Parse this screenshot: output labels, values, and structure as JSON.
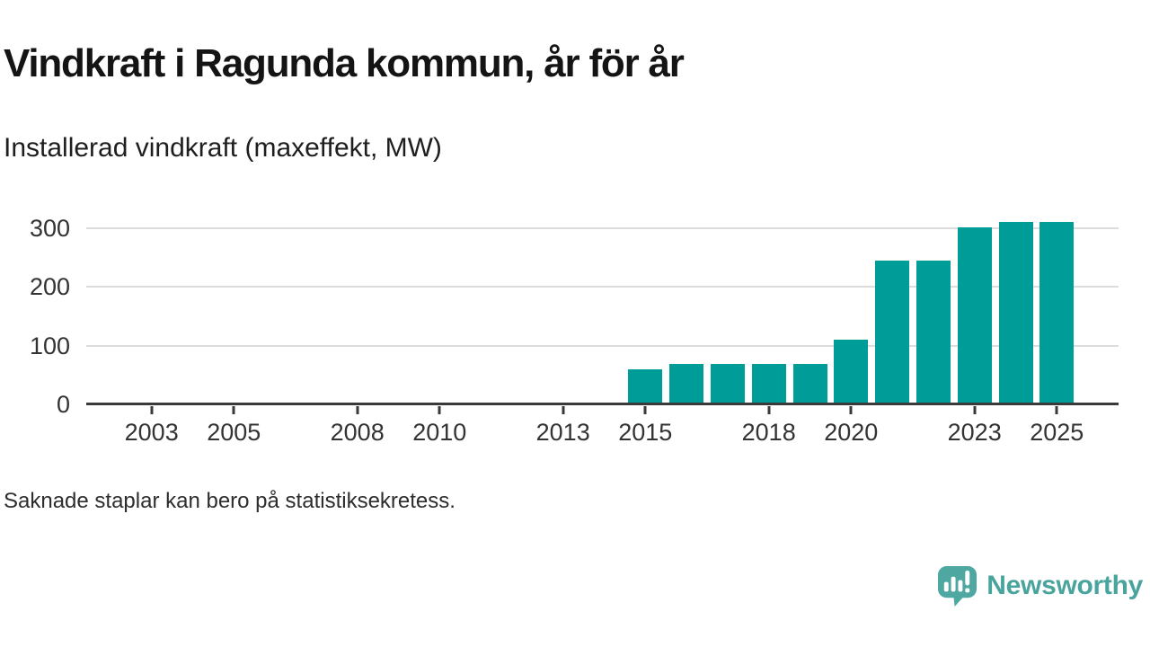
{
  "header": {
    "title": "Vindkraft i Ragunda kommun, år för år",
    "subtitle": "Installerad vindkraft (maxeffekt, MW)"
  },
  "footer": {
    "note": "Saknade staplar kan bero på statistiksekretess."
  },
  "brand": {
    "name": "Newsworthy",
    "color": "#49a49d",
    "icon": "bar-chart-speech-bubble"
  },
  "chart_data": {
    "type": "bar",
    "title": "Vindkraft i Ragunda kommun, år för år",
    "subtitle": "Installerad vindkraft (maxeffekt, MW)",
    "ylabel": "Installerad vindkraft (maxeffekt, MW)",
    "xlabel": "",
    "x_domain": [
      2002,
      2026
    ],
    "ylim": [
      0,
      336
    ],
    "yticks": [
      0,
      100,
      200,
      300
    ],
    "xticks": [
      2003,
      2005,
      2008,
      2010,
      2013,
      2015,
      2018,
      2020,
      2023,
      2025
    ],
    "grid": "horizontal",
    "legend": "none",
    "bar_color": "#009c98",
    "categories": [
      2015,
      2016,
      2017,
      2018,
      2019,
      2020,
      2021,
      2022,
      2023,
      2024,
      2025
    ],
    "values": [
      60,
      68,
      68,
      68,
      68,
      110,
      244,
      244,
      301,
      310,
      310
    ]
  }
}
